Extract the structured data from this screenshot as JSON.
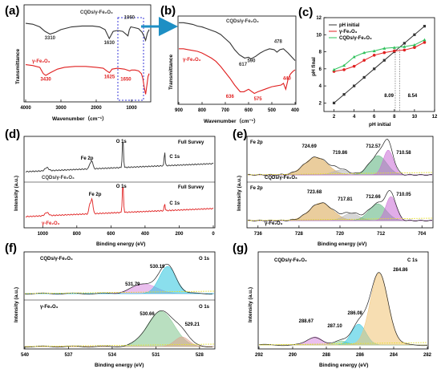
{
  "colors": {
    "black_series": "#333333",
    "red_series": "#e02020",
    "green_series": "#2ec05a",
    "arrow": "#1e8fc4",
    "highlight_box": "#3a3ad8"
  },
  "panels": {
    "a": {
      "letter": "(a)"
    },
    "b": {
      "letter": "(b)"
    },
    "c": {
      "letter": "(c)"
    },
    "d": {
      "letter": "(d)"
    },
    "e": {
      "letter": "(e)"
    },
    "f": {
      "letter": "(f)"
    },
    "g": {
      "letter": "(g)"
    }
  },
  "chart_data": [
    {
      "id": "a",
      "type": "line",
      "xlabel": "Wavenumber（cm⁻¹）",
      "ylabel": "Transmittance",
      "xlim": [
        4000,
        500
      ],
      "xticks": [
        "4000",
        "3000",
        "2000",
        "1000"
      ],
      "series": [
        {
          "name": "CQDs/γ-Fe₂O₃",
          "color": "#333333",
          "x": [
            4000,
            3800,
            3600,
            3450,
            3310,
            3150,
            3000,
            2700,
            2400,
            2100,
            1900,
            1750,
            1630,
            1520,
            1400,
            1250,
            1100,
            1060,
            1020,
            900,
            800,
            700,
            650,
            600,
            550,
            500
          ],
          "y": [
            0.83,
            0.82,
            0.79,
            0.74,
            0.71,
            0.73,
            0.76,
            0.79,
            0.8,
            0.8,
            0.79,
            0.76,
            0.66,
            0.74,
            0.75,
            0.74,
            0.69,
            0.76,
            0.79,
            0.78,
            0.77,
            0.73,
            0.69,
            0.64,
            0.72,
            0.76
          ]
        },
        {
          "name": "γ-Fe₂O₃",
          "color": "#e02020",
          "x": [
            4000,
            3800,
            3600,
            3500,
            3430,
            3300,
            3100,
            2900,
            2600,
            2300,
            2000,
            1800,
            1700,
            1625,
            1550,
            1400,
            1200,
            1050,
            1000,
            900,
            800,
            720,
            680,
            640,
            600,
            560,
            530,
            500
          ],
          "y": [
            0.37,
            0.36,
            0.34,
            0.27,
            0.25,
            0.28,
            0.32,
            0.34,
            0.35,
            0.35,
            0.34,
            0.33,
            0.3,
            0.28,
            0.32,
            0.33,
            0.32,
            0.3,
            0.31,
            0.31,
            0.3,
            0.27,
            0.22,
            0.12,
            0.04,
            0.15,
            0.24,
            0.27
          ]
        }
      ],
      "annotations": [
        {
          "text": "3310",
          "color": "#333333",
          "x": 3310,
          "y": 0.65
        },
        {
          "text": "1630",
          "color": "#333333",
          "x": 1630,
          "y": 0.6
        },
        {
          "text": "1060",
          "color": "#333333",
          "x": 1060,
          "y": 0.88
        },
        {
          "text": "3430",
          "color": "#e02020",
          "x": 3430,
          "y": 0.19
        },
        {
          "text": "1625",
          "color": "#e02020",
          "x": 1625,
          "y": 0.22
        },
        {
          "text": "1650",
          "color": "#e02020",
          "x": 1160,
          "y": 0.19
        }
      ],
      "legend": [
        {
          "text": "CQDs/γ-Fe₂O₃",
          "color": "#333333"
        },
        {
          "text": "γ-Fe₂O₃",
          "color": "#e02020"
        }
      ]
    },
    {
      "id": "b",
      "type": "line",
      "xlabel": "Wavenumber（cm⁻¹）",
      "ylabel": "Transmittance",
      "xlim": [
        900,
        400
      ],
      "xticks": [
        "900",
        "800",
        "700",
        "600",
        "500",
        "400"
      ],
      "series": [
        {
          "name": "CQDs/γ-Fe₂O₃",
          "color": "#333333",
          "x": [
            900,
            880,
            860,
            840,
            820,
            800,
            780,
            760,
            740,
            720,
            700,
            680,
            660,
            640,
            617,
            600,
            590,
            570,
            550,
            530,
            510,
            490,
            478,
            465,
            450,
            430,
            410,
            400
          ],
          "y": [
            0.94,
            0.94,
            0.93,
            0.92,
            0.9,
            0.89,
            0.87,
            0.85,
            0.83,
            0.8,
            0.75,
            0.7,
            0.62,
            0.56,
            0.52,
            0.53,
            0.51,
            0.54,
            0.58,
            0.61,
            0.63,
            0.62,
            0.59,
            0.62,
            0.63,
            0.58,
            0.52,
            0.49
          ]
        },
        {
          "name": "γ-Fe₂O₃",
          "color": "#e02020",
          "x": [
            900,
            880,
            860,
            840,
            820,
            800,
            780,
            760,
            740,
            720,
            700,
            680,
            660,
            636,
            620,
            600,
            575,
            560,
            540,
            520,
            500,
            480,
            460,
            450,
            440,
            430,
            420,
            410,
            400
          ],
          "y": [
            0.63,
            0.63,
            0.62,
            0.61,
            0.6,
            0.58,
            0.55,
            0.52,
            0.48,
            0.42,
            0.35,
            0.28,
            0.2,
            0.12,
            0.12,
            0.15,
            0.1,
            0.12,
            0.14,
            0.16,
            0.18,
            0.19,
            0.2,
            0.22,
            0.15,
            0.27,
            0.33,
            0.36,
            0.38
          ]
        }
      ],
      "annotations": [
        {
          "text": "617",
          "color": "#333333",
          "x": 624,
          "y": 0.43
        },
        {
          "text": "590",
          "color": "#333333",
          "x": 588,
          "y": 0.47
        },
        {
          "text": "478",
          "color": "#333333",
          "x": 473,
          "y": 0.7
        },
        {
          "text": "440",
          "color": "#e02020",
          "x": 435,
          "y": 0.26
        },
        {
          "text": "636",
          "color": "#e02020",
          "x": 680,
          "y": 0.05
        },
        {
          "text": "575",
          "color": "#e02020",
          "x": 560,
          "y": 0.02
        }
      ],
      "legend": [
        {
          "text": "CQDs/γ-Fe₂O₃",
          "color": "#333333"
        },
        {
          "text": "γ-Fe₂O₃",
          "color": "#e02020"
        }
      ]
    },
    {
      "id": "c",
      "type": "line",
      "xlabel": "pH initial",
      "ylabel": "pH final",
      "xlim": [
        1,
        12
      ],
      "ylim": [
        1,
        12
      ],
      "xticks": [
        2,
        4,
        6,
        8,
        10,
        12
      ],
      "yticks": [
        2,
        4,
        6,
        8,
        10,
        12
      ],
      "series": [
        {
          "name": "pH initial",
          "color": "#333333",
          "marker": "square",
          "x": [
            2,
            3,
            4,
            5,
            6,
            7,
            8,
            9,
            10,
            11
          ],
          "y": [
            2,
            3,
            4,
            5,
            6,
            7,
            8,
            9,
            10,
            11
          ]
        },
        {
          "name": "γ-Fe₂O₃",
          "color": "#e02020",
          "marker": "circle",
          "x": [
            2,
            3,
            4,
            5,
            6,
            7,
            8,
            9,
            10,
            11
          ],
          "y": [
            5.7,
            5.9,
            6.3,
            7.0,
            7.6,
            7.9,
            8.1,
            8.2,
            8.5,
            9.1
          ]
        },
        {
          "name": "CQDs/γ-Fe₂O₃",
          "color": "#2ec05a",
          "marker": "triangle",
          "x": [
            2,
            3,
            4,
            5,
            6,
            7,
            8,
            9,
            10,
            11
          ],
          "y": [
            5.9,
            6.4,
            7.4,
            7.9,
            8.1,
            8.4,
            8.5,
            8.6,
            8.8,
            9.4
          ]
        }
      ],
      "vlines": [
        {
          "x": 8.09,
          "text": "8.09"
        },
        {
          "x": 8.54,
          "text": "8.54"
        }
      ],
      "legend": [
        {
          "text": "pH initial",
          "color": "#333333"
        },
        {
          "text": "γ-Fe₂O₃",
          "color": "#e02020"
        },
        {
          "text": "CQDs/γ-Fe₂O₃",
          "color": "#2ec05a"
        }
      ]
    },
    {
      "id": "d",
      "type": "line",
      "xlabel": "Binding energy (eV)",
      "ylabel": "Intensity (a.u.)",
      "xlim": [
        1100,
        0
      ],
      "xticks": [
        "1000",
        "800",
        "600",
        "400",
        "200",
        "0"
      ],
      "subplots": [
        {
          "label": "Full Survey",
          "legend": "CQDs/γ-Fe₂O₃",
          "color": "#333333",
          "peaks": [
            {
              "text": "O 1s",
              "x": 530
            },
            {
              "text": "Fe 2p",
              "x": 711
            },
            {
              "text": "C 1s",
              "x": 285
            }
          ]
        },
        {
          "label": "Full Survey",
          "legend": "γ-Fe₂O₃",
          "color": "#e02020",
          "peaks": [
            {
              "text": "O 1s",
              "x": 530
            },
            {
              "text": "Fe 2p",
              "x": 711
            },
            {
              "text": "C 1s",
              "x": 285
            }
          ]
        }
      ]
    },
    {
      "id": "e",
      "type": "area",
      "xlabel": "Binding energy (eV)",
      "ylabel": "Intensity (a.u.)",
      "xlim": [
        738,
        702
      ],
      "xticks": [
        "736",
        "728",
        "720",
        "712",
        "704"
      ],
      "subplots": [
        {
          "title": "Fe 2p",
          "legend": "CQDs/γ-Fe₂O₃",
          "peaks": [
            {
              "text": "724.69"
            },
            {
              "text": "719.86"
            },
            {
              "text": "712.57"
            },
            {
              "text": "710.58"
            }
          ]
        },
        {
          "title": "Fe 2p",
          "legend": "γ-Fe₂O₃",
          "peaks": [
            {
              "text": "723.68"
            },
            {
              "text": "717.81"
            },
            {
              "text": "712.66"
            },
            {
              "text": "710.05"
            }
          ]
        }
      ]
    },
    {
      "id": "f",
      "type": "area",
      "xlabel": "Binding energy (eV)",
      "ylabel": "Intensity (a.u.)",
      "xlim": [
        540,
        527
      ],
      "xticks": [
        "540",
        "537",
        "534",
        "531",
        "528"
      ],
      "subplots": [
        {
          "title": "O 1s",
          "legend": "CQDs/γ-Fe₂O₃",
          "peaks": [
            {
              "text": "530.19"
            },
            {
              "text": "531.79"
            }
          ]
        },
        {
          "title": "O 1s",
          "legend": "γ-Fe₂O₃",
          "peaks": [
            {
              "text": "530.66"
            },
            {
              "text": "529.21"
            }
          ]
        }
      ]
    },
    {
      "id": "g",
      "type": "area",
      "xlabel": "Binding energy (eV)",
      "ylabel": "Intensity (a.u.)",
      "xlim": [
        292,
        282
      ],
      "xticks": [
        "292",
        "290",
        "288",
        "286",
        "284",
        "282"
      ],
      "title": "C 1s",
      "legend": "CQDs/γ-Fe₂O₃",
      "peaks": [
        {
          "text": "284.86"
        },
        {
          "text": "286.08"
        },
        {
          "text": "287.10"
        },
        {
          "text": "288.67"
        }
      ]
    }
  ]
}
